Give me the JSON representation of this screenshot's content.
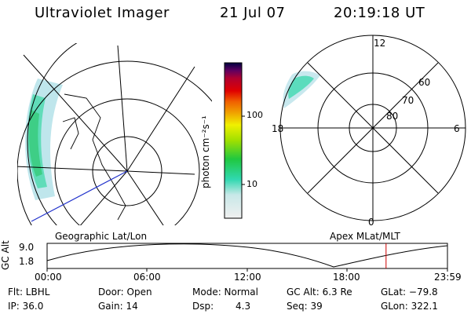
{
  "header": {
    "title": "Ultraviolet Imager",
    "date": "21 Jul 07",
    "time": "20:19:18 UT"
  },
  "colorbar": {
    "unit": "photon cm⁻²s⁻¹",
    "ticks": [
      "100",
      "10"
    ],
    "scale": "log",
    "colors": [
      "#f0f0f0",
      "#c8e8e8",
      "#30d8b0",
      "#20c840",
      "#a0e000",
      "#f0f000",
      "#f0a000",
      "#f06000",
      "#e00000",
      "#b00030",
      "#600060",
      "#000040"
    ]
  },
  "geo_panel": {
    "label": "Geographic Lat/Lon"
  },
  "apex_panel": {
    "label": "Apex MLat/MLT",
    "mlt_labels": {
      "top": "12",
      "left": "18",
      "right": "6",
      "bottom": "0"
    },
    "lat_labels": [
      "60",
      "70",
      "80"
    ]
  },
  "timeline": {
    "ylabel": "GC Alt",
    "yticks": [
      "9.0",
      "1.8"
    ],
    "xticks": [
      "00:00",
      "06:00",
      "12:00",
      "18:00",
      "23:59"
    ],
    "current_marker_hours": 20.32
  },
  "info": {
    "flt": "Flt: LBHL",
    "ip": "IP: 36.0",
    "door": "Door: Open",
    "gain": "Gain: 14",
    "mode": "Mode: Normal",
    "dsp_label": "Dsp:",
    "dsp_value": "4.3",
    "gc_alt": "GC Alt: 6.3 Re",
    "seq": "Seq: 39",
    "glat": "GLat: −79.8",
    "glon": "GLon: 322.1"
  }
}
